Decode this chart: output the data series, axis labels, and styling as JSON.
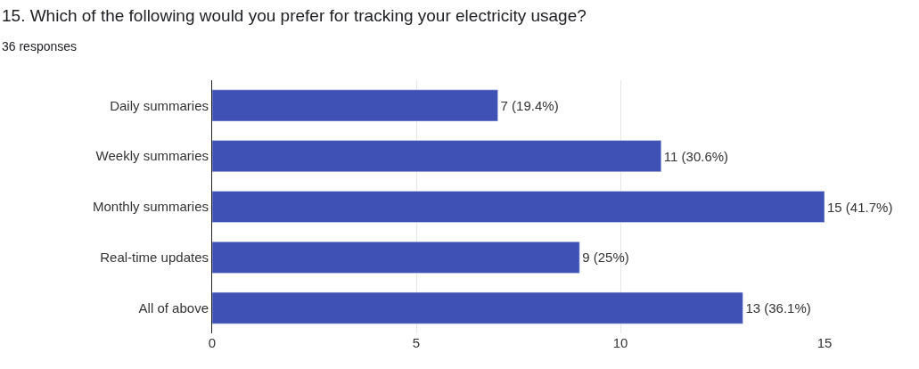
{
  "chart_data": {
    "type": "bar",
    "orientation": "horizontal",
    "title": "15. Which of the following would you prefer for tracking your electricity usage?",
    "subtitle": "36 responses",
    "categories": [
      "Daily summaries",
      "Weekly summaries",
      "Monthly summaries",
      "Real-time updates",
      "All of above"
    ],
    "values": [
      7,
      11,
      15,
      9,
      13
    ],
    "value_labels": [
      "7 (19.4%)",
      "11 (30.6%)",
      "15 (41.7%)",
      "9 (25%)",
      "13 (36.1%)"
    ],
    "color": "#3f51b5",
    "xlim": [
      0,
      15
    ],
    "xticks": [
      0,
      5,
      10,
      15
    ],
    "grid": "x"
  }
}
